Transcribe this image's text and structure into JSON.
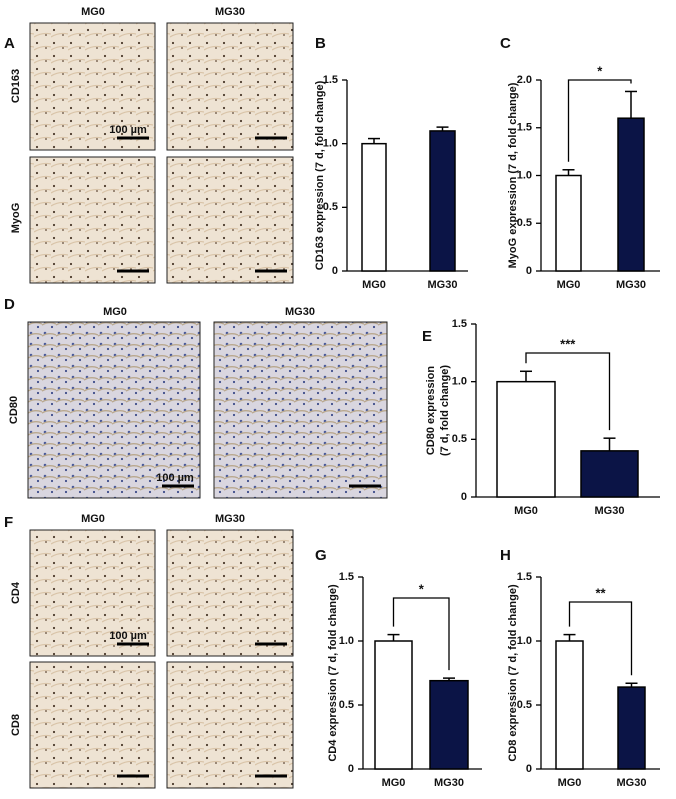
{
  "figure": {
    "panels": [
      {
        "letter": "A",
        "columns": [
          "MG0",
          "MG30"
        ],
        "rows": [
          "CD163",
          "MyoG"
        ],
        "scale": "100 µm"
      },
      {
        "letter": "D",
        "columns": [
          "MG0",
          "MG30"
        ],
        "rows": [
          "CD80"
        ],
        "scale": "100 µm"
      },
      {
        "letter": "F",
        "columns": [
          "MG0",
          "MG30"
        ],
        "rows": [
          "CD4",
          "CD8"
        ],
        "scale": "100 µm"
      }
    ]
  },
  "chart_data": [
    {
      "type": "bar",
      "panel": "B",
      "ylabel": [
        "CD163 expression (7 d, fold change)"
      ],
      "categories": [
        "MG0",
        "MG30"
      ],
      "values": [
        1.0,
        1.1
      ],
      "errors": [
        0.04,
        0.03
      ],
      "colors": [
        "#ffffff",
        "#0b1446"
      ],
      "ylim": [
        0,
        1.5
      ],
      "yticks": [
        0,
        0.5,
        {
          "value": 1,
          "label": "1.0"
        },
        1.5
      ]
    },
    {
      "type": "bar",
      "panel": "C",
      "ylabel": [
        "MyoG expression (7 d, fold change)"
      ],
      "categories": [
        "MG0",
        "MG30"
      ],
      "values": [
        1.0,
        1.6
      ],
      "errors": [
        0.06,
        0.28
      ],
      "colors": [
        "#ffffff",
        "#0b1446"
      ],
      "ylim": [
        0,
        2
      ],
      "yticks": [
        0,
        0.5,
        {
          "value": 1,
          "label": "1.0"
        },
        1.5,
        {
          "value": 2,
          "label": "2.0"
        }
      ],
      "significance": "*"
    },
    {
      "type": "bar",
      "panel": "E",
      "ylabel": [
        "CD80 expression",
        "(7 d, fold change)"
      ],
      "categories": [
        "MG0",
        "MG30"
      ],
      "values": [
        1.0,
        0.4
      ],
      "errors": [
        0.09,
        0.11
      ],
      "colors": [
        "#ffffff",
        "#0b1446"
      ],
      "ylim": [
        0,
        1.5
      ],
      "yticks": [
        0,
        0.5,
        {
          "value": 1,
          "label": "1.0"
        },
        1.5
      ],
      "significance": "***"
    },
    {
      "type": "bar",
      "panel": "G",
      "ylabel": [
        "CD4 expression (7 d, fold change)"
      ],
      "categories": [
        "MG0",
        "MG30"
      ],
      "values": [
        1.0,
        0.69
      ],
      "errors": [
        0.05,
        0.02
      ],
      "colors": [
        "#ffffff",
        "#0b1446"
      ],
      "ylim": [
        0,
        1.5
      ],
      "yticks": [
        0,
        0.5,
        {
          "value": 1,
          "label": "1.0"
        },
        1.5
      ],
      "significance": "*"
    },
    {
      "type": "bar",
      "panel": "H",
      "ylabel": [
        "CD8 expression (7 d, fold change)"
      ],
      "categories": [
        "MG0",
        "MG30"
      ],
      "values": [
        1.0,
        0.64
      ],
      "errors": [
        0.05,
        0.03
      ],
      "colors": [
        "#ffffff",
        "#0b1446"
      ],
      "ylim": [
        0,
        1.5
      ],
      "yticks": [
        0,
        0.5,
        {
          "value": 1,
          "label": "1.0"
        },
        1.5
      ],
      "significance": "**"
    }
  ]
}
